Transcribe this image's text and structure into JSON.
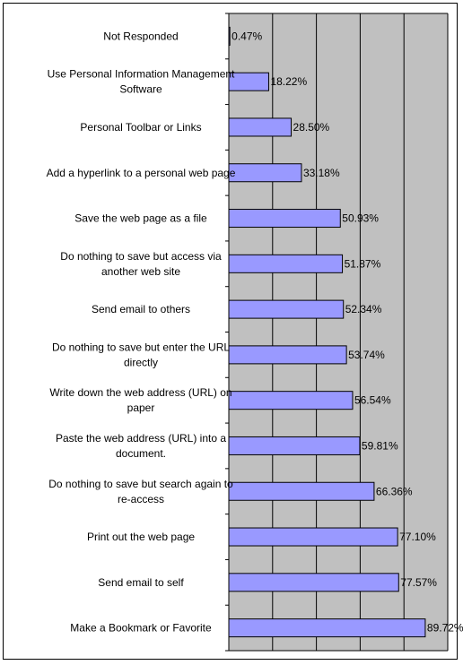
{
  "chart_data": {
    "type": "bar",
    "orientation": "horizontal",
    "categories": [
      "Not Responded",
      "Use Personal Information Management Software",
      "Personal Toolbar or Links",
      "Add a hyperlink to a personal web page",
      "Save the web page as a file",
      "Do nothing to save but access via another web site",
      "Send email to others",
      "Do nothing to save but enter the URL directly",
      "Write down the web address (URL) on paper",
      "Paste the web address (URL) into a document.",
      "Do nothing to save but search again to re-access",
      "Print out the web page",
      "Send email to self",
      "Make a Bookmark or Favorite"
    ],
    "category_lines": [
      [
        "Not Responded"
      ],
      [
        "Use Personal Information Management",
        "Software"
      ],
      [
        "Personal Toolbar or Links"
      ],
      [
        "Add a hyperlink to a personal web page"
      ],
      [
        "Save the web page as a file"
      ],
      [
        "Do nothing to save but access via",
        "another web site"
      ],
      [
        "Send email to others"
      ],
      [
        "Do nothing to save but enter the URL",
        "directly"
      ],
      [
        "Write down the web address (URL) on",
        "paper"
      ],
      [
        "Paste the web address (URL) into a",
        "document."
      ],
      [
        "Do nothing to save but search again to",
        "re-access"
      ],
      [
        "Print out the web page"
      ],
      [
        "Send email to self"
      ],
      [
        "Make a Bookmark or Favorite"
      ]
    ],
    "values": [
      0.47,
      18.22,
      28.5,
      33.18,
      50.93,
      51.87,
      52.34,
      53.74,
      56.54,
      59.81,
      66.36,
      77.1,
      77.57,
      89.72
    ],
    "value_labels": [
      "0.47%",
      "18.22%",
      "28.50%",
      "33.18%",
      "50.93%",
      "51.87%",
      "52.34%",
      "53.74%",
      "56.54%",
      "59.81%",
      "66.36%",
      "77.10%",
      "77.57%",
      "89.72%"
    ],
    "xlim": [
      0,
      100
    ],
    "x_gridlines": [
      20,
      40,
      60,
      80
    ],
    "grid": true,
    "legend": "none",
    "colors": {
      "bar_fill": "#9999ff",
      "bar_stroke": "#000000",
      "plot_background": "#c0c0c0",
      "gridline": "#000000"
    }
  }
}
